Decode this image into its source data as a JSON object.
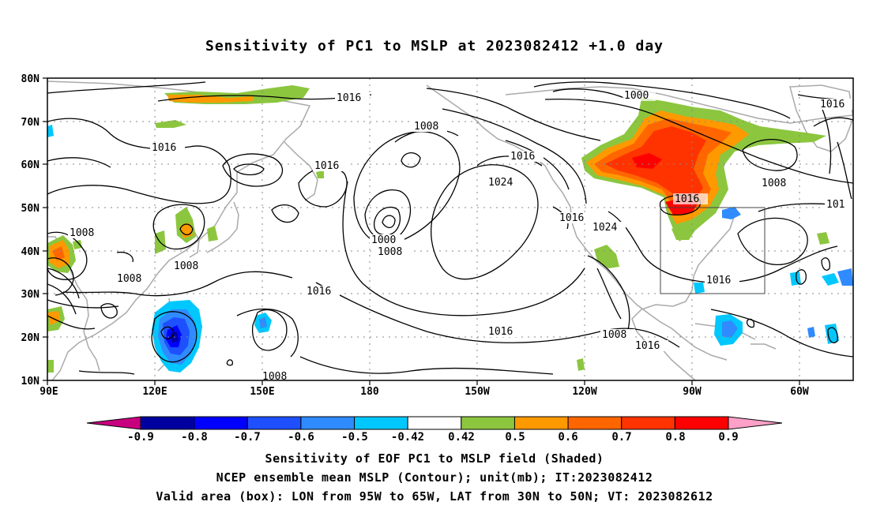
{
  "title": "Sensitivity of PC1 to MSLP at 2023082412 +1.0 day",
  "lat_labels": [
    "80N",
    "70N",
    "60N",
    "50N",
    "40N",
    "30N",
    "20N",
    "10N"
  ],
  "lon_labels": [
    "90E",
    "120E",
    "150E",
    "180",
    "150W",
    "120W",
    "90W",
    "60W"
  ],
  "contour_labels": [
    "1016",
    "1000",
    "1016",
    "1008",
    "1016",
    "1016",
    "1016",
    "1016",
    "1024",
    "1008",
    "1016",
    "1008",
    "1008",
    "1000",
    "1008",
    "1016",
    "1024",
    "1016",
    "1008",
    "1016",
    "1016",
    "1008",
    "1008",
    "101"
  ],
  "colorbar": {
    "ticks": [
      "-0.9",
      "-0.8",
      "-0.7",
      "-0.6",
      "-0.5",
      "-0.42",
      "0.42",
      "0.5",
      "0.6",
      "0.7",
      "0.8",
      "0.9"
    ],
    "colors": [
      "#0000a0",
      "#0000ff",
      "#1e50ff",
      "#2f8bff",
      "#00c8ff",
      "#ffffff",
      "#8cc63f",
      "#ff9900",
      "#ff6600",
      "#ff3300",
      "#ff0000"
    ],
    "left_tail_color": "#c8007f",
    "right_tail_color": "#ffa0c8"
  },
  "captions": {
    "line1": "Sensitivity of EOF PC1 to MSLP field (Shaded)",
    "line2": "NCEP ensemble mean MSLP (Contour); unit(mb); IT:2023082412",
    "line3": "Valid area (box): LON from 95W to 65W, LAT from 30N to 50N; VT: 2023082612"
  }
}
